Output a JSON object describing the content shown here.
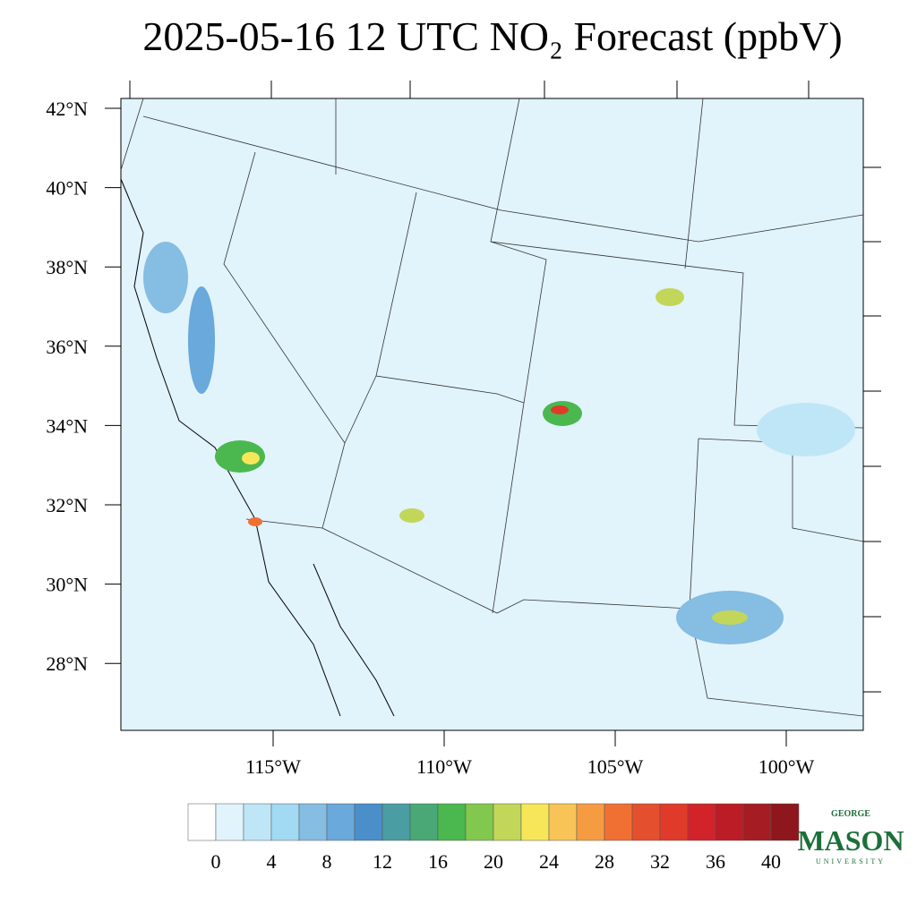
{
  "title": "2025-05-16 12 UTC NO₂ Forecast (ppbV)",
  "lat_labels": [
    "42°N",
    "40°N",
    "38°N",
    "36°N",
    "34°N",
    "32°N",
    "30°N",
    "28°N"
  ],
  "lon_labels": [
    "115°W",
    "110°W",
    "105°W",
    "100°W"
  ],
  "colorbar": {
    "colors": [
      "#ffffff",
      "#e1f3fb",
      "#bfe6f7",
      "#a2d9f3",
      "#85bde3",
      "#69a9dc",
      "#4a8fca",
      "#4a9da3",
      "#4aa876",
      "#4ab84e",
      "#82c84e",
      "#c2d65a",
      "#f7e758",
      "#f8c458",
      "#f59c42",
      "#f07034",
      "#e4502e",
      "#e03a2b",
      "#d2232b",
      "#bc1c26",
      "#a51d23",
      "#8d171d"
    ],
    "labels": [
      0,
      4,
      8,
      12,
      16,
      20,
      24,
      28,
      32,
      36,
      40
    ]
  },
  "logo": {
    "top": "GEORGE",
    "name": "MASON",
    "bottom": "UNIVERSITY"
  }
}
